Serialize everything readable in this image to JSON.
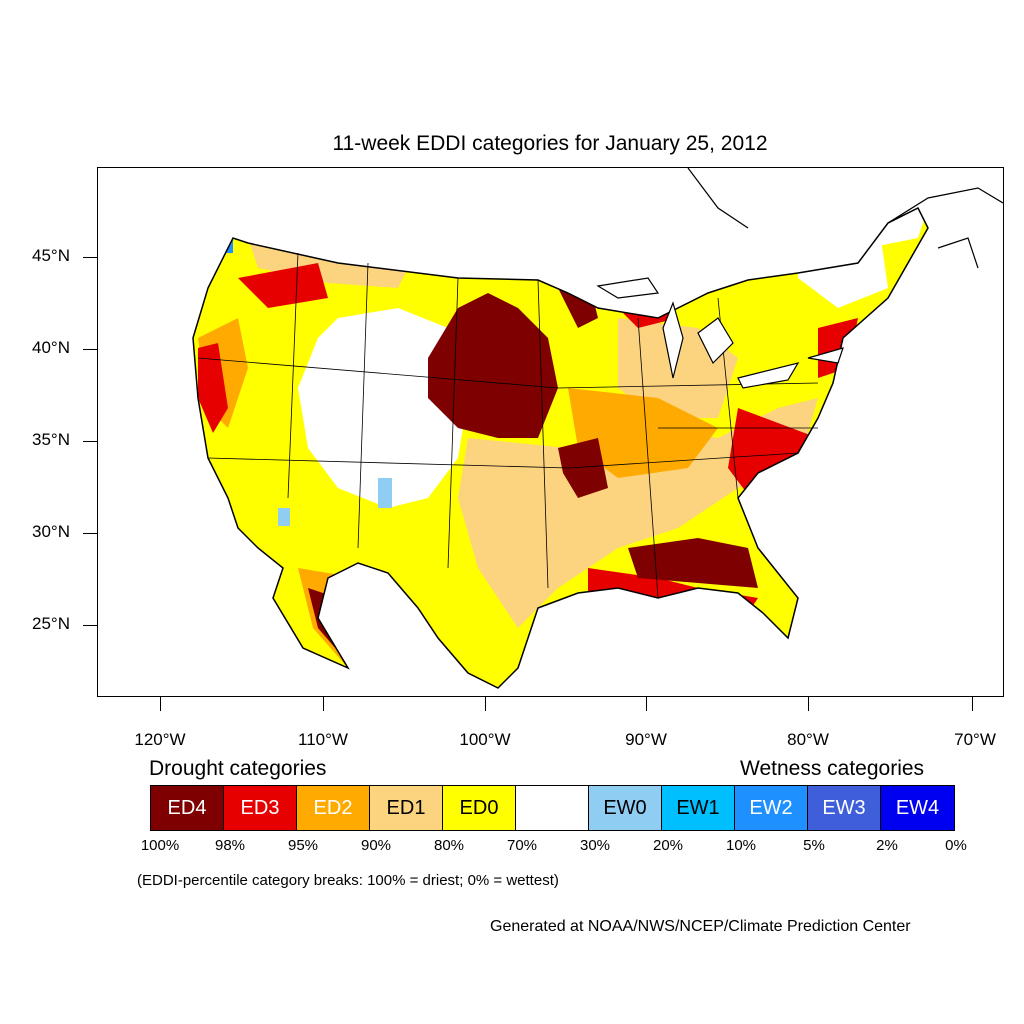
{
  "title": "11-week EDDI categories for January 25, 2012",
  "map": {
    "lat_labels": [
      "45°N",
      "40°N",
      "35°N",
      "30°N",
      "25°N"
    ],
    "lon_labels": [
      "120°W",
      "110°W",
      "100°W",
      "90°W",
      "80°W",
      "70°W"
    ]
  },
  "legend": {
    "drought_heading": "Drought categories",
    "wetness_heading": "Wetness categories",
    "categories": [
      {
        "label": "ED4",
        "color": "#7f0000",
        "text_color": "#ffffff"
      },
      {
        "label": "ED3",
        "color": "#e60000",
        "text_color": "#ffffff"
      },
      {
        "label": "ED2",
        "color": "#ffaa00",
        "text_color": "#ffffff"
      },
      {
        "label": "ED1",
        "color": "#fcd37f",
        "text_color": "#000000"
      },
      {
        "label": "ED0",
        "color": "#ffff00",
        "text_color": "#000000"
      },
      {
        "label": "",
        "color": "#ffffff",
        "text_color": "#000000"
      },
      {
        "label": "EW0",
        "color": "#8fcdf2",
        "text_color": "#000000"
      },
      {
        "label": "EW1",
        "color": "#00bfff",
        "text_color": "#000000"
      },
      {
        "label": "EW2",
        "color": "#1e90ff",
        "text_color": "#ffffff"
      },
      {
        "label": "EW3",
        "color": "#3e5fd9",
        "text_color": "#ffffff"
      },
      {
        "label": "EW4",
        "color": "#0000f0",
        "text_color": "#ffffff"
      }
    ],
    "percentiles": [
      "100%",
      "98%",
      "95%",
      "90%",
      "80%",
      "70%",
      "30%",
      "20%",
      "10%",
      "5%",
      "2%",
      "0%"
    ]
  },
  "note": "(EDDI-percentile category breaks: 100% = driest; 0% = wettest)",
  "credit": "Generated at NOAA/NWS/NCEP/Climate Prediction Center"
}
